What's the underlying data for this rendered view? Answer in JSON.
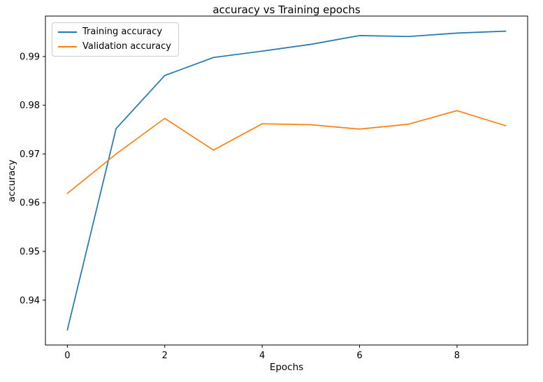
{
  "chart_data": {
    "type": "line",
    "title": "accuracy vs Training epochs",
    "xlabel": "Epochs",
    "ylabel": "accuracy",
    "x": [
      0,
      1,
      2,
      3,
      4,
      5,
      6,
      7,
      8,
      9
    ],
    "series": [
      {
        "name": "Training accuracy",
        "color": "#1f77b4",
        "values": [
          0.9339,
          0.9752,
          0.9861,
          0.9898,
          0.9911,
          0.9925,
          0.9943,
          0.9941,
          0.9948,
          0.9952
        ]
      },
      {
        "name": "Validation accuracy",
        "color": "#ff7f0e",
        "values": [
          0.9619,
          0.97,
          0.9773,
          0.9708,
          0.9762,
          0.976,
          0.9751,
          0.9761,
          0.9789,
          0.9758
        ]
      }
    ],
    "xticks": [
      0,
      2,
      4,
      6,
      8
    ],
    "yticks": [
      0.94,
      0.95,
      0.96,
      0.97,
      0.98,
      0.99
    ],
    "xlim": [
      -0.45,
      9.45
    ],
    "ylim": [
      0.9308,
      0.9983
    ],
    "grid": false,
    "legend_position": "upper left"
  }
}
